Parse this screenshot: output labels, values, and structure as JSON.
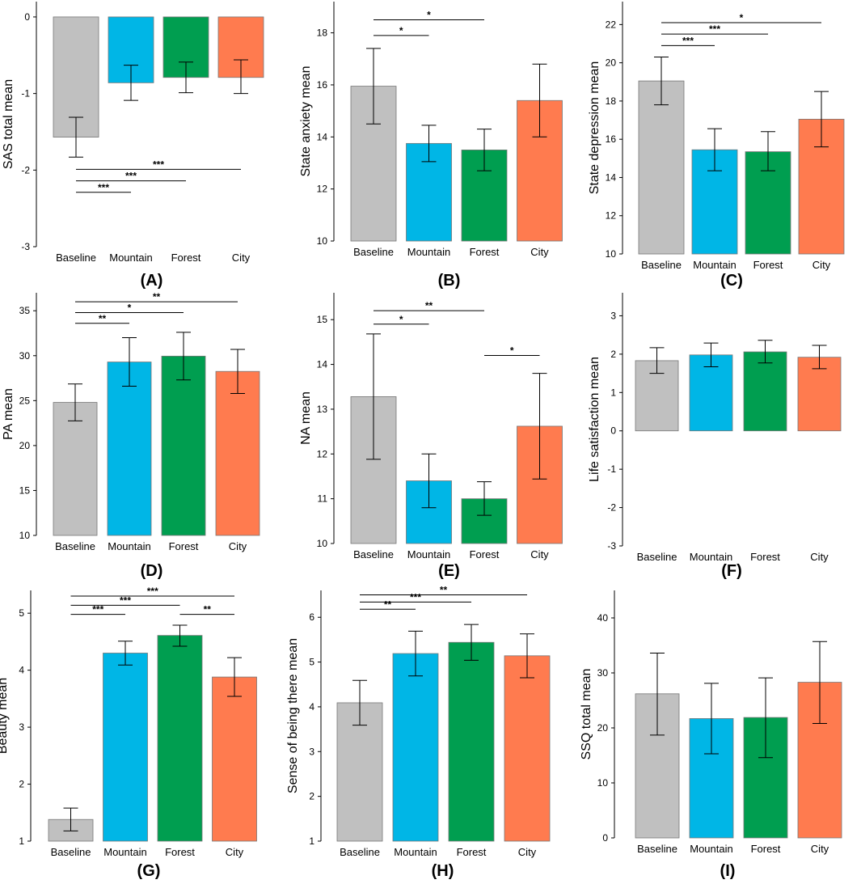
{
  "colors": {
    "baseline": "#c0c0c0",
    "mountain": "#00b6e6",
    "forest": "#009e50",
    "city": "#ff7b4f",
    "axis": "#000000"
  },
  "chart_data": [
    {
      "panel": "(A)",
      "type": "bar",
      "ylabel": "SAS total mean",
      "categories": [
        "Baseline",
        "Mountain",
        "Forest",
        "City"
      ],
      "values": [
        -1.57,
        -0.86,
        -0.79,
        -0.79
      ],
      "err_low": [
        -1.83,
        -1.09,
        -0.99,
        -1.0
      ],
      "err_high": [
        -1.31,
        -0.63,
        -0.59,
        -0.56
      ],
      "ylim": [
        -3,
        0.2
      ],
      "yticks": [
        -3,
        -2,
        -1,
        0
      ],
      "baseline_value": 0,
      "significance": [
        {
          "from": 0,
          "to": 1,
          "y": -2.29,
          "label": "***"
        },
        {
          "from": 0,
          "to": 2,
          "y": -2.14,
          "label": "***"
        },
        {
          "from": 0,
          "to": 3,
          "y": -1.99,
          "label": "***"
        }
      ]
    },
    {
      "panel": "(B)",
      "type": "bar",
      "ylabel": "State anxiety mean",
      "categories": [
        "Baseline",
        "Mountain",
        "Forest",
        "City"
      ],
      "values": [
        15.95,
        13.75,
        13.5,
        15.4
      ],
      "err_low": [
        14.5,
        13.05,
        12.7,
        14.0
      ],
      "err_high": [
        17.4,
        14.45,
        14.3,
        16.8
      ],
      "ylim": [
        10,
        19.2
      ],
      "yticks": [
        10,
        12,
        14,
        16,
        18
      ],
      "baseline_value": 10,
      "significance": [
        {
          "from": 0,
          "to": 1,
          "y": 17.9,
          "label": "*"
        },
        {
          "from": 0,
          "to": 2,
          "y": 18.5,
          "label": "*"
        }
      ]
    },
    {
      "panel": "(C)",
      "type": "bar",
      "ylabel": "State depression mean",
      "categories": [
        "Baseline",
        "Mountain",
        "Forest",
        "City"
      ],
      "values": [
        19.05,
        15.45,
        15.35,
        17.05
      ],
      "err_low": [
        17.8,
        14.35,
        14.35,
        15.6
      ],
      "err_high": [
        20.3,
        16.55,
        16.4,
        18.5
      ],
      "ylim": [
        10,
        23.2
      ],
      "yticks": [
        10,
        12,
        14,
        16,
        18,
        20,
        22
      ],
      "baseline_value": 10,
      "significance": [
        {
          "from": 0,
          "to": 1,
          "y": 20.9,
          "label": "***"
        },
        {
          "from": 0,
          "to": 2,
          "y": 21.5,
          "label": "***"
        },
        {
          "from": 0,
          "to": 3,
          "y": 22.1,
          "label": "*"
        }
      ]
    },
    {
      "panel": "(D)",
      "type": "bar",
      "ylabel": "PA mean",
      "categories": [
        "Baseline",
        "Mountain",
        "Forest",
        "City"
      ],
      "values": [
        24.8,
        29.3,
        29.95,
        28.25
      ],
      "err_low": [
        22.75,
        26.6,
        27.3,
        25.8
      ],
      "err_high": [
        26.85,
        32.0,
        32.6,
        30.7
      ],
      "ylim": [
        10,
        37
      ],
      "yticks": [
        10,
        15,
        20,
        25,
        30,
        35
      ],
      "baseline_value": 10,
      "significance": [
        {
          "from": 0,
          "to": 1,
          "y": 33.6,
          "label": "**"
        },
        {
          "from": 0,
          "to": 2,
          "y": 34.8,
          "label": "*"
        },
        {
          "from": 0,
          "to": 3,
          "y": 36.0,
          "label": "**"
        }
      ]
    },
    {
      "panel": "(E)",
      "type": "bar",
      "ylabel": "NA mean",
      "categories": [
        "Baseline",
        "Mountain",
        "Forest",
        "City"
      ],
      "values": [
        13.28,
        11.4,
        11.0,
        12.62
      ],
      "err_low": [
        11.88,
        10.8,
        10.63,
        11.44
      ],
      "err_high": [
        14.68,
        12.0,
        11.38,
        13.8
      ],
      "ylim": [
        10,
        15.6
      ],
      "yticks": [
        10,
        11,
        12,
        13,
        14,
        15
      ],
      "baseline_value": 10,
      "significance": [
        {
          "from": 0,
          "to": 1,
          "y": 14.9,
          "label": "*"
        },
        {
          "from": 0,
          "to": 2,
          "y": 15.2,
          "label": "**"
        },
        {
          "from": 2,
          "to": 3,
          "y": 14.2,
          "label": "*"
        }
      ]
    },
    {
      "panel": "(F)",
      "type": "bar",
      "ylabel": "Life satisfaction mean",
      "categories": [
        "Baseline",
        "Mountain",
        "Forest",
        "City"
      ],
      "values": [
        1.83,
        1.98,
        2.06,
        1.92
      ],
      "err_low": [
        1.5,
        1.67,
        1.77,
        1.62
      ],
      "err_high": [
        2.17,
        2.29,
        2.36,
        2.23
      ],
      "ylim": [
        -3,
        3.6
      ],
      "yticks": [
        -3,
        -2,
        -1,
        0,
        1,
        2,
        3
      ],
      "baseline_value": 0,
      "significance": []
    },
    {
      "panel": "(G)",
      "type": "bar",
      "ylabel": "Beauty mean",
      "categories": [
        "Baseline",
        "Mountain",
        "Forest",
        "City"
      ],
      "values": [
        1.38,
        4.3,
        4.61,
        3.88
      ],
      "err_low": [
        1.18,
        4.09,
        4.42,
        3.54
      ],
      "err_high": [
        1.58,
        4.51,
        4.79,
        4.22
      ],
      "ylim": [
        1,
        5.4
      ],
      "yticks": [
        1,
        2,
        3,
        4,
        5
      ],
      "baseline_value": 1,
      "significance": [
        {
          "from": 0,
          "to": 1,
          "y": 4.98,
          "label": "***"
        },
        {
          "from": 0,
          "to": 2,
          "y": 5.14,
          "label": "***"
        },
        {
          "from": 0,
          "to": 3,
          "y": 5.3,
          "label": "***"
        },
        {
          "from": 2,
          "to": 3,
          "y": 4.98,
          "label": "**"
        }
      ]
    },
    {
      "panel": "(H)",
      "type": "bar",
      "ylabel": "Sense of being there mean",
      "categories": [
        "Baseline",
        "Mountain",
        "Forest",
        "City"
      ],
      "values": [
        4.09,
        5.19,
        5.44,
        5.14
      ],
      "err_low": [
        3.59,
        4.69,
        5.04,
        4.65
      ],
      "err_high": [
        4.59,
        5.69,
        5.84,
        5.63
      ],
      "ylim": [
        1,
        6.6
      ],
      "yticks": [
        1,
        2,
        3,
        4,
        5,
        6
      ],
      "baseline_value": 1,
      "significance": [
        {
          "from": 0,
          "to": 1,
          "y": 6.18,
          "label": "**"
        },
        {
          "from": 0,
          "to": 2,
          "y": 6.34,
          "label": "***"
        },
        {
          "from": 0,
          "to": 3,
          "y": 6.5,
          "label": "**"
        }
      ]
    },
    {
      "panel": "(I)",
      "type": "bar",
      "ylabel": "SSQ total mean",
      "categories": [
        "Baseline",
        "Mountain",
        "Forest",
        "City"
      ],
      "values": [
        26.2,
        21.7,
        21.9,
        28.3
      ],
      "err_low": [
        18.7,
        15.3,
        14.6,
        20.8
      ],
      "err_high": [
        33.6,
        28.1,
        29.1,
        35.7
      ],
      "ylim": [
        0,
        45
      ],
      "yticks": [
        0,
        10,
        20,
        30,
        40
      ],
      "baseline_value": 0,
      "significance": []
    }
  ]
}
